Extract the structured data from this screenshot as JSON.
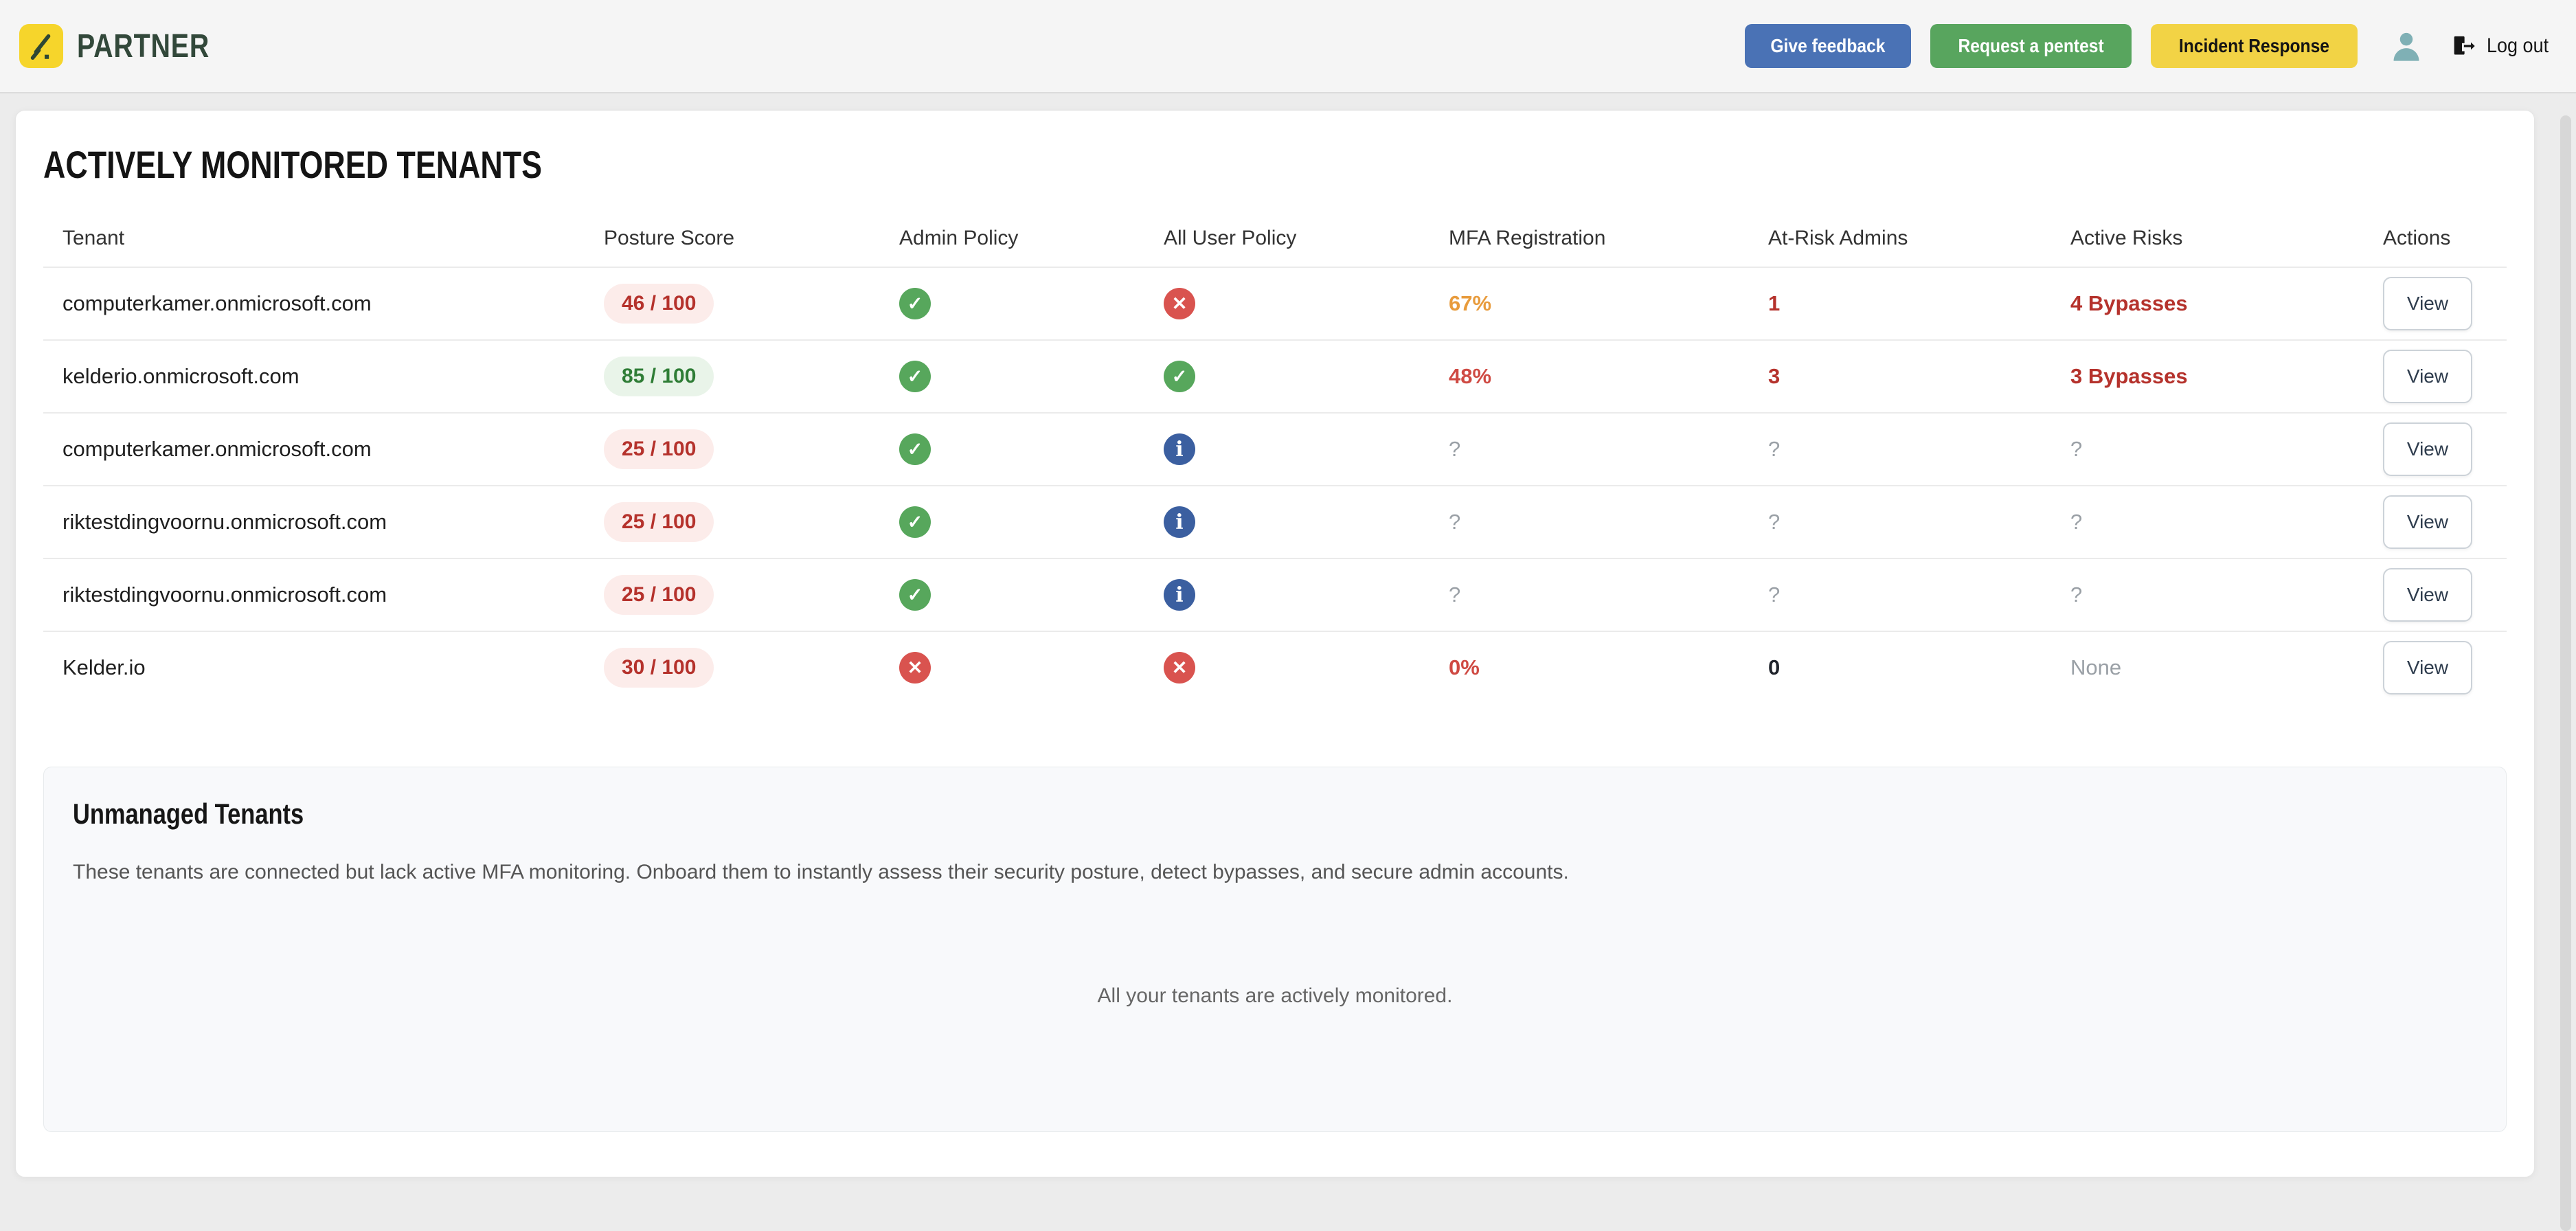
{
  "brand": {
    "name": "PARTNER"
  },
  "header": {
    "buttons": [
      {
        "label": "Give feedback",
        "style": "blue"
      },
      {
        "label": "Request a pentest",
        "style": "green"
      },
      {
        "label": "Incident Response",
        "style": "yellow"
      }
    ],
    "logout_label": "Log out"
  },
  "monitored": {
    "title": "ACTIVELY MONITORED TENANTS",
    "columns": [
      "Tenant",
      "Posture Score",
      "Admin Policy",
      "All User Policy",
      "MFA Registration",
      "At-Risk Admins",
      "Active Risks",
      "Actions"
    ],
    "action_label": "View",
    "rows": [
      {
        "tenant": "computerkamer.onmicrosoft.com",
        "posture_score": "46 / 100",
        "posture_level": "bad",
        "admin_policy": "check",
        "all_user_policy": "cross",
        "mfa_registration": {
          "text": "67%",
          "tone": "warn"
        },
        "at_risk_admins": {
          "text": "1",
          "tone": "danger"
        },
        "active_risks": {
          "text": "4 Bypasses",
          "tone": "danger"
        }
      },
      {
        "tenant": "kelderio.onmicrosoft.com",
        "posture_score": "85 / 100",
        "posture_level": "good",
        "admin_policy": "check",
        "all_user_policy": "check",
        "mfa_registration": {
          "text": "48%",
          "tone": "red"
        },
        "at_risk_admins": {
          "text": "3",
          "tone": "danger"
        },
        "active_risks": {
          "text": "3 Bypasses",
          "tone": "danger"
        }
      },
      {
        "tenant": "computerkamer.onmicrosoft.com",
        "posture_score": "25 / 100",
        "posture_level": "bad",
        "admin_policy": "check",
        "all_user_policy": "info",
        "mfa_registration": {
          "text": "?",
          "tone": "muted"
        },
        "at_risk_admins": {
          "text": "?",
          "tone": "muted"
        },
        "active_risks": {
          "text": "?",
          "tone": "muted"
        }
      },
      {
        "tenant": "riktestdingvoornu.onmicrosoft.com",
        "posture_score": "25 / 100",
        "posture_level": "bad",
        "admin_policy": "check",
        "all_user_policy": "info",
        "mfa_registration": {
          "text": "?",
          "tone": "muted"
        },
        "at_risk_admins": {
          "text": "?",
          "tone": "muted"
        },
        "active_risks": {
          "text": "?",
          "tone": "muted"
        }
      },
      {
        "tenant": "riktestdingvoornu.onmicrosoft.com",
        "posture_score": "25 / 100",
        "posture_level": "bad",
        "admin_policy": "check",
        "all_user_policy": "info",
        "mfa_registration": {
          "text": "?",
          "tone": "muted"
        },
        "at_risk_admins": {
          "text": "?",
          "tone": "muted"
        },
        "active_risks": {
          "text": "?",
          "tone": "muted"
        }
      },
      {
        "tenant": "Kelder.io",
        "posture_score": "30 / 100",
        "posture_level": "bad",
        "admin_policy": "cross",
        "all_user_policy": "cross",
        "mfa_registration": {
          "text": "0%",
          "tone": "red"
        },
        "at_risk_admins": {
          "text": "0",
          "tone": "strong"
        },
        "active_risks": {
          "text": "None",
          "tone": "muted"
        }
      }
    ]
  },
  "unmanaged": {
    "title": "Unmanaged Tenants",
    "description": "These tenants are connected but lack active MFA monitoring. Onboard them to instantly assess their security posture, detect bypasses, and secure admin accounts.",
    "empty_message": "All your tenants are actively monitored."
  },
  "icons": {
    "check": "✓",
    "cross": "✕",
    "info": "i"
  },
  "colors": {
    "brand_yellow": "#f6d52b",
    "brand_green": "#32483a",
    "button_blue": "#4a72b5",
    "button_green": "#58a55e",
    "button_yellow": "#f2d345",
    "status_green": "#57a75c",
    "status_red": "#d9534f",
    "status_info_blue": "#3b5fa0",
    "danger_text": "#b5322c",
    "warn_text": "#e89b3c",
    "muted_text": "#9aa0a6",
    "avatar_teal": "#7fb0b5"
  }
}
